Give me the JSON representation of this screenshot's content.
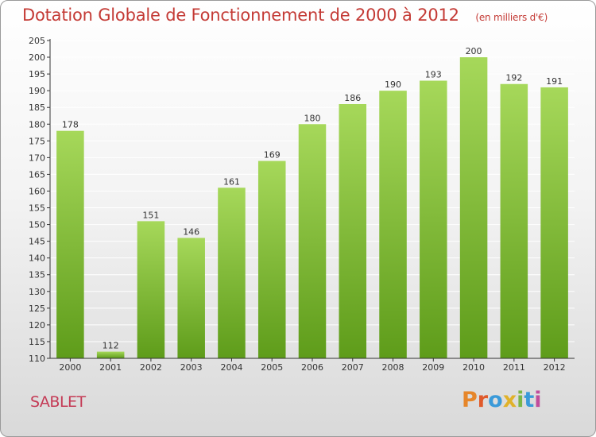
{
  "header": {
    "title": "Dotation Globale de Fonctionnement de 2000 à 2012",
    "unit": "(en milliers d'€)"
  },
  "footer": {
    "commune": "SABLET",
    "logo_letters": [
      "P",
      "r",
      "o",
      "x",
      "i",
      "t",
      "i"
    ],
    "logo_colors": [
      "#e6862a",
      "#e05a2b",
      "#3a9ad9",
      "#e0b22a",
      "#7ab648",
      "#3a9ad9",
      "#c04c9c"
    ]
  },
  "colors": {
    "bar_top": "#a6d85a",
    "bar_bottom": "#5e9c1a",
    "axis": "#333333",
    "grid": "#ffffff"
  },
  "chart_data": {
    "type": "bar",
    "categories": [
      "2000",
      "2001",
      "2002",
      "2003",
      "2004",
      "2005",
      "2006",
      "2007",
      "2008",
      "2009",
      "2010",
      "2011",
      "2012"
    ],
    "values": [
      178,
      112,
      151,
      146,
      161,
      169,
      180,
      186,
      190,
      193,
      200,
      192,
      191
    ],
    "ylim": [
      110,
      205
    ],
    "yticks": [
      110,
      115,
      120,
      125,
      130,
      135,
      140,
      145,
      150,
      155,
      160,
      165,
      170,
      175,
      180,
      185,
      190,
      195,
      200,
      205
    ],
    "grid": true,
    "title": "Dotation Globale de Fonctionnement de 2000 à 2012",
    "xlabel": "",
    "ylabel": ""
  }
}
